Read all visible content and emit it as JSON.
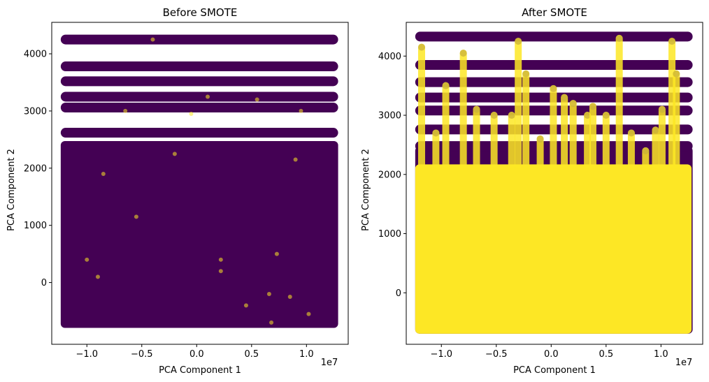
{
  "colors": {
    "majority": "#440154",
    "minority": "#fde725",
    "minority_blend": "#c9b23a",
    "axis": "#000000"
  },
  "chart_data": [
    {
      "type": "scatter",
      "title": "Before SMOTE",
      "xlabel": "PCA Component 1",
      "ylabel": "PCA Component 2",
      "x_offset_label": "1e7",
      "xlim": [
        -1.32,
        1.38
      ],
      "ylim": [
        -1080,
        4550
      ],
      "xticks": [
        -1.0,
        -0.5,
        0.0,
        0.5,
        1.0
      ],
      "xtick_labels": [
        "−1.0",
        "−0.5",
        "0.0",
        "0.5",
        "1.0"
      ],
      "yticks": [
        0,
        1000,
        2000,
        3000,
        4000
      ],
      "ytick_labels": [
        "0",
        "1000",
        "2000",
        "3000",
        "4000"
      ],
      "grid": false,
      "series": [
        {
          "class": 0,
          "color": "#440154",
          "dense_region": {
            "x": [
              -1.2,
              1.25
            ],
            "y": [
              -720,
              2400
            ]
          },
          "bands": [
            {
              "y": 4250,
              "x": [
                -1.2,
                1.25
              ]
            },
            {
              "y": 3780,
              "x": [
                -1.2,
                1.25
              ]
            },
            {
              "y": 3520,
              "x": [
                -1.2,
                1.25
              ]
            },
            {
              "y": 3250,
              "x": [
                -1.2,
                1.25
              ]
            },
            {
              "y": 3060,
              "x": [
                -1.2,
                1.25
              ]
            },
            {
              "y": 2620,
              "x": [
                -1.2,
                1.25
              ]
            }
          ]
        },
        {
          "class": 1,
          "color": "#fde725",
          "points": [
            [
              -0.85,
              1900
            ],
            [
              -0.2,
              2250
            ],
            [
              0.1,
              3250
            ],
            [
              -0.65,
              3000
            ],
            [
              0.55,
              3200
            ],
            [
              -1.0,
              400
            ],
            [
              0.22,
              400
            ],
            [
              0.22,
              200
            ],
            [
              -0.9,
              100
            ],
            [
              0.73,
              500
            ],
            [
              0.66,
              -200
            ],
            [
              0.45,
              -400
            ],
            [
              0.68,
              -700
            ],
            [
              1.02,
              -550
            ],
            [
              -0.4,
              4250
            ],
            [
              0.9,
              2150
            ],
            [
              -0.55,
              1150
            ],
            [
              0.85,
              -250
            ],
            [
              -0.05,
              2950
            ],
            [
              0.95,
              3000
            ]
          ]
        }
      ]
    },
    {
      "type": "scatter",
      "title": "After SMOTE",
      "xlabel": "PCA Component 1",
      "ylabel": "PCA Component 2",
      "x_offset_label": "1e7",
      "xlim": [
        -1.32,
        1.38
      ],
      "ylim": [
        -870,
        4570
      ],
      "xticks": [
        -1.0,
        -0.5,
        0.0,
        0.5,
        1.0
      ],
      "xtick_labels": [
        "−1.0",
        "−0.5",
        "0.0",
        "0.5",
        "1.0"
      ],
      "yticks": [
        0,
        1000,
        2000,
        3000,
        4000
      ],
      "ytick_labels": [
        "0",
        "1000",
        "2000",
        "3000",
        "4000"
      ],
      "grid": false,
      "series": [
        {
          "class": 0,
          "color": "#440154",
          "dense_region": {
            "x": [
              -1.2,
              1.25
            ],
            "y": [
              -620,
              2400
            ]
          },
          "bands": [
            {
              "y": 4330,
              "x": [
                -1.2,
                1.25
              ]
            },
            {
              "y": 3850,
              "x": [
                -1.2,
                1.25
              ]
            },
            {
              "y": 3560,
              "x": [
                -1.2,
                1.25
              ]
            },
            {
              "y": 3300,
              "x": [
                -1.2,
                1.25
              ]
            },
            {
              "y": 3080,
              "x": [
                -1.2,
                1.25
              ]
            },
            {
              "y": 2760,
              "x": [
                -1.2,
                1.25
              ]
            },
            {
              "y": 2480,
              "x": [
                -1.2,
                1.25
              ]
            }
          ]
        },
        {
          "class": 1,
          "color": "#fde725",
          "dense_region": {
            "x": [
              -1.2,
              1.24
            ],
            "y": [
              -620,
              2100
            ]
          },
          "spikes": [
            {
              "x": -1.18,
              "y_top": 4150
            },
            {
              "x": -1.05,
              "y_top": 2700
            },
            {
              "x": -0.96,
              "y_top": 3500
            },
            {
              "x": -0.8,
              "y_top": 4050
            },
            {
              "x": -0.68,
              "y_top": 3100
            },
            {
              "x": -0.52,
              "y_top": 3000
            },
            {
              "x": -0.36,
              "y_top": 3000
            },
            {
              "x": -0.3,
              "y_top": 4250
            },
            {
              "x": -0.23,
              "y_top": 3700
            },
            {
              "x": -0.1,
              "y_top": 2600
            },
            {
              "x": 0.02,
              "y_top": 3450
            },
            {
              "x": 0.12,
              "y_top": 3300
            },
            {
              "x": 0.2,
              "y_top": 3200
            },
            {
              "x": 0.33,
              "y_top": 3000
            },
            {
              "x": 0.38,
              "y_top": 3150
            },
            {
              "x": 0.5,
              "y_top": 3000
            },
            {
              "x": 0.62,
              "y_top": 4300
            },
            {
              "x": 0.73,
              "y_top": 2700
            },
            {
              "x": 0.86,
              "y_top": 2400
            },
            {
              "x": 0.95,
              "y_top": 2750
            },
            {
              "x": 1.01,
              "y_top": 3100
            },
            {
              "x": 1.1,
              "y_top": 4250
            },
            {
              "x": 1.14,
              "y_top": 3700
            }
          ]
        }
      ]
    }
  ]
}
